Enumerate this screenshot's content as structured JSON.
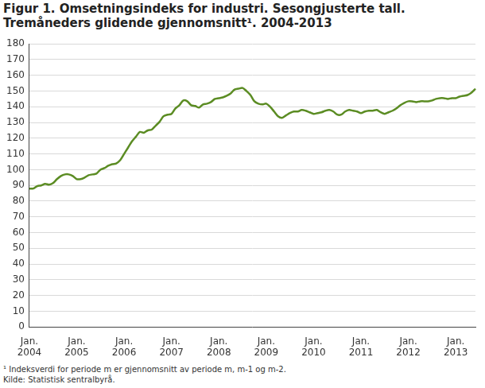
{
  "chart_data": {
    "type": "line",
    "title": "Figur 1. Omsetningsindeks for industri. Sesongjusterte tall. Tremåneders glidende gjennomsnitt¹. 2004-2013",
    "footnotes": [
      "¹ Indeksverdi for periode m er gjennomsnitt av periode m, m-1 og m-2.",
      "Kilde: Statistisk sentralbyrå."
    ],
    "categories": [
      "Jan. 2004",
      null,
      null,
      null,
      null,
      null,
      null,
      null,
      null,
      null,
      null,
      null,
      "Jan. 2005",
      null,
      null,
      null,
      null,
      null,
      null,
      null,
      null,
      null,
      null,
      null,
      "Jan. 2006",
      null,
      null,
      null,
      null,
      null,
      null,
      null,
      null,
      null,
      null,
      null,
      "Jan. 2007",
      null,
      null,
      null,
      null,
      null,
      null,
      null,
      null,
      null,
      null,
      null,
      "Jan. 2008",
      null,
      null,
      null,
      null,
      null,
      null,
      null,
      null,
      null,
      null,
      null,
      "Jan. 2009",
      null,
      null,
      null,
      null,
      null,
      null,
      null,
      null,
      null,
      null,
      null,
      "Jan. 2010",
      null,
      null,
      null,
      null,
      null,
      null,
      null,
      null,
      null,
      null,
      null,
      "Jan. 2011",
      null,
      null,
      null,
      null,
      null,
      null,
      null,
      null,
      null,
      null,
      null,
      "Jan. 2012",
      null,
      null,
      null,
      null,
      null,
      null,
      null,
      null,
      null,
      null,
      null,
      "Jan. 2013",
      null,
      null,
      null,
      null,
      null
    ],
    "values": [
      88,
      88,
      89.5,
      90,
      91,
      90.5,
      91.5,
      94,
      96,
      97,
      97,
      96,
      94,
      94,
      95,
      96.5,
      97,
      97.5,
      100,
      101,
      102.5,
      103.5,
      104,
      106,
      110,
      114,
      118,
      121,
      124,
      123.5,
      125,
      125.5,
      128,
      130.5,
      134,
      135,
      135.5,
      139,
      141,
      144,
      143.5,
      141,
      140.5,
      139.5,
      141.5,
      142,
      143,
      145,
      145.5,
      146,
      147,
      148.5,
      151,
      151.5,
      152,
      150,
      147.5,
      143.5,
      142,
      141.5,
      142,
      140,
      137,
      134,
      133,
      134.5,
      136,
      137,
      137,
      138,
      137.5,
      136.5,
      135.5,
      136,
      136.5,
      137.5,
      138,
      137,
      135,
      135,
      137,
      138,
      137.5,
      137,
      136,
      137,
      137.5,
      137.5,
      138,
      136.5,
      135.5,
      136.5,
      137.5,
      139,
      141,
      142.5,
      143.5,
      143.5,
      143,
      143.5,
      143.5,
      143.5,
      144,
      145,
      145.5,
      145.5,
      145,
      145.5,
      145.5,
      146.5,
      147,
      147.5,
      149,
      151.5
    ],
    "color": "#5b8c23",
    "ylim": [
      0,
      180
    ],
    "yticks": [
      0,
      10,
      20,
      30,
      40,
      50,
      60,
      70,
      80,
      90,
      100,
      110,
      120,
      130,
      140,
      150,
      160,
      170,
      180
    ],
    "grid": true
  }
}
